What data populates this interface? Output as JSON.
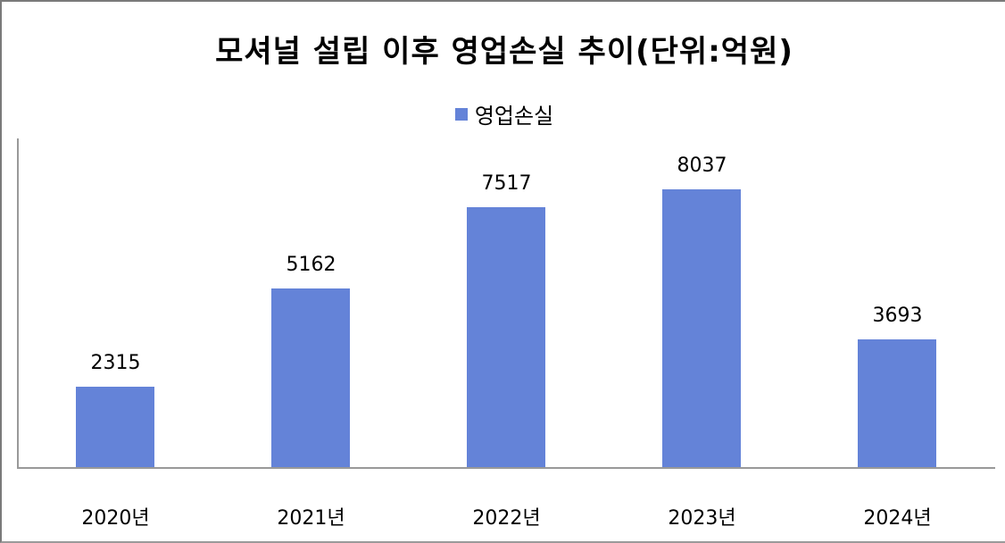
{
  "title": "모셔널 설립 이후 영업손실 추이(단위:억원)",
  "legend": {
    "label": "영업손실",
    "color": "#6483d8"
  },
  "chart_data": {
    "type": "bar",
    "title": "모셔널 설립 이후 영업손실 추이(단위:억원)",
    "categories": [
      "2020년",
      "2021년",
      "2022년",
      "2023년",
      "2024년"
    ],
    "series": [
      {
        "name": "영업손실",
        "values": [
          2315,
          5162,
          7517,
          8037,
          3693
        ],
        "color": "#6483d8"
      }
    ],
    "xlabel": "",
    "ylabel": "",
    "ylim": [
      0,
      9500
    ],
    "grid": false,
    "legend_position": "top",
    "data_labels": true
  },
  "bars": [
    {
      "category": "2020년",
      "value": "2315"
    },
    {
      "category": "2021년",
      "value": "5162"
    },
    {
      "category": "2022년",
      "value": "7517"
    },
    {
      "category": "2023년",
      "value": "8037"
    },
    {
      "category": "2024년",
      "value": "3693"
    }
  ]
}
